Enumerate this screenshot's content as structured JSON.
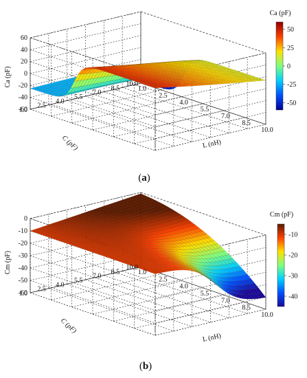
{
  "chart_data": [
    {
      "panel": "(a)",
      "type": "surface3d",
      "x_label": "L (nH)",
      "y_label": "C (pF)",
      "z_label": "Ca (pF)",
      "x_ticks": [
        "1.0",
        "2.5",
        "4.0",
        "5.5",
        "7.0",
        "8.5",
        "10.0"
      ],
      "y_ticks": [
        "1.0",
        "2.5",
        "4.0",
        "5.5",
        "7.0",
        "8.5",
        "10.0"
      ],
      "z_ticks": [
        "60",
        "40",
        "20",
        "0",
        "-20",
        "-40",
        "-60"
      ],
      "x_range": [
        1.0,
        10.0
      ],
      "y_range": [
        1.0,
        10.0
      ],
      "zlim": [
        -60,
        60
      ],
      "colorbar_title": "Ca (pF)",
      "colorbar_ticks": [
        "50",
        "25",
        "0",
        "-25",
        "-50"
      ],
      "colorbar_range": [
        -60,
        60
      ],
      "colormap": [
        "#00008f",
        "#0050ff",
        "#00d0ff",
        "#7fff7f",
        "#ffe000",
        "#ff4000",
        "#8f0000"
      ],
      "grid": true,
      "surface_samples": {
        "L": [
          1.0,
          2.5,
          4.0,
          5.5,
          7.0,
          8.5,
          10.0
        ],
        "C": [
          1.0,
          2.5,
          4.0,
          5.5,
          7.0,
          8.5,
          10.0
        ],
        "Ca_at_L_1.0": [
          -25,
          -24,
          -22,
          -20,
          -22,
          -32,
          -55
        ],
        "Ca_at_L_10.0": [
          45,
          22,
          14,
          10,
          8,
          7,
          6
        ]
      }
    },
    {
      "panel": "(b)",
      "type": "surface3d",
      "x_label": "L (nH)",
      "y_label": "C (pF)",
      "z_label": "Cm (pF)",
      "x_ticks": [
        "1.0",
        "2.5",
        "4.0",
        "5.5",
        "7.0",
        "8.5",
        "10.0"
      ],
      "y_ticks": [
        "1.0",
        "2.5",
        "4.0",
        "5.5",
        "7.0",
        "8.5",
        "10.0"
      ],
      "z_ticks": [
        "0",
        "-10",
        "-20",
        "-30",
        "-40",
        "-50",
        "-60"
      ],
      "x_range": [
        1.0,
        10.0
      ],
      "y_range": [
        1.0,
        10.0
      ],
      "zlim": [
        -60,
        0
      ],
      "colorbar_title": "Cm (pF)",
      "colorbar_ticks": [
        "-10",
        "-20",
        "-30",
        "-40"
      ],
      "colorbar_range": [
        -45,
        -5
      ],
      "colormap": [
        "#1a0a9a",
        "#0050ff",
        "#00d0ff",
        "#7fff7f",
        "#ffe000",
        "#ff4000",
        "#5a1a00"
      ],
      "grid": true,
      "surface_samples": {
        "L": [
          1.0,
          2.5,
          4.0,
          5.5,
          7.0,
          8.5,
          10.0
        ],
        "C": [
          1.0,
          2.5,
          4.0,
          5.5,
          7.0,
          8.5,
          10.0
        ],
        "Cm_at_C_1.0": [
          -10,
          -7,
          -4,
          -2,
          -1,
          -1,
          -1
        ],
        "Cm_at_C_10.0": [
          -10,
          -11,
          -13,
          -16,
          -22,
          -35,
          -45
        ]
      }
    }
  ]
}
